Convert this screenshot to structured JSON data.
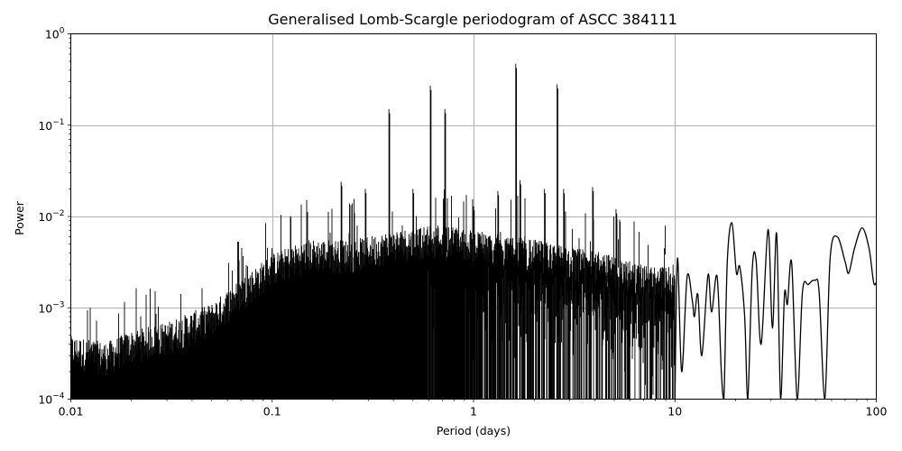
{
  "chart_data": {
    "type": "line",
    "title": "Generalised Lomb-Scargle periodogram of ASCC 384111",
    "xlabel": "Period (days)",
    "ylabel": "Power",
    "xscale": "log",
    "yscale": "log",
    "xlim": [
      0.01,
      100
    ],
    "ylim": [
      0.0001,
      1
    ],
    "grid": true,
    "line_color": "#000000",
    "grid_color": "#b0b0b0",
    "x_ticks": [
      {
        "value": 0.01,
        "label": "0.01"
      },
      {
        "value": 0.1,
        "label": "0.1"
      },
      {
        "value": 1,
        "label": "1"
      },
      {
        "value": 10,
        "label": "10"
      },
      {
        "value": 100,
        "label": "100"
      }
    ],
    "y_ticks": [
      {
        "value": 0.0001,
        "base": "10",
        "exp": "−4"
      },
      {
        "value": 0.001,
        "base": "10",
        "exp": "−3"
      },
      {
        "value": 0.01,
        "base": "10",
        "exp": "−2"
      },
      {
        "value": 0.1,
        "base": "10",
        "exp": "−1"
      },
      {
        "value": 1,
        "base": "10",
        "exp": "0"
      }
    ],
    "major_peaks": [
      {
        "period": 0.38,
        "power": 0.15
      },
      {
        "period": 0.61,
        "power": 0.27
      },
      {
        "period": 0.72,
        "power": 0.15
      },
      {
        "period": 1.62,
        "power": 0.47
      },
      {
        "period": 2.6,
        "power": 0.28
      },
      {
        "period": 0.22,
        "power": 0.024
      },
      {
        "period": 0.29,
        "power": 0.02
      },
      {
        "period": 0.38,
        "power": 0.03
      },
      {
        "period": 0.5,
        "power": 0.02
      },
      {
        "period": 1.0,
        "power": 0.013
      },
      {
        "period": 1.32,
        "power": 0.019
      },
      {
        "period": 1.7,
        "power": 0.025
      },
      {
        "period": 2.25,
        "power": 0.02
      },
      {
        "period": 2.8,
        "power": 0.02
      },
      {
        "period": 3.9,
        "power": 0.021
      },
      {
        "period": 5.1,
        "power": 0.012
      }
    ],
    "noise_envelope": [
      {
        "period": 0.01,
        "power": 0.00035
      },
      {
        "period": 0.015,
        "power": 0.0003
      },
      {
        "period": 0.02,
        "power": 0.0004
      },
      {
        "period": 0.03,
        "power": 0.0005
      },
      {
        "period": 0.05,
        "power": 0.0008
      },
      {
        "period": 0.07,
        "power": 0.0015
      },
      {
        "period": 0.1,
        "power": 0.0028
      },
      {
        "period": 0.15,
        "power": 0.004
      },
      {
        "period": 0.25,
        "power": 0.004
      },
      {
        "period": 0.4,
        "power": 0.005
      },
      {
        "period": 0.7,
        "power": 0.006
      },
      {
        "period": 1.0,
        "power": 0.005
      },
      {
        "period": 2.0,
        "power": 0.004
      },
      {
        "period": 4.0,
        "power": 0.003
      },
      {
        "period": 8.0,
        "power": 0.002
      }
    ],
    "long_period_curve": [
      {
        "period": 10.0,
        "power": 0.0001
      },
      {
        "period": 10.3,
        "power": 0.0035
      },
      {
        "period": 10.8,
        "power": 0.0002
      },
      {
        "period": 11.5,
        "power": 0.0022
      },
      {
        "period": 12.2,
        "power": 0.0012
      },
      {
        "period": 12.5,
        "power": 0.0008
      },
      {
        "period": 13.0,
        "power": 0.0014
      },
      {
        "period": 13.6,
        "power": 0.0003
      },
      {
        "period": 14.6,
        "power": 0.0023
      },
      {
        "period": 15.2,
        "power": 0.0009
      },
      {
        "period": 16.2,
        "power": 0.0022
      },
      {
        "period": 17.0,
        "power": 0.0002
      },
      {
        "period": 17.5,
        "power": 0.0001
      },
      {
        "period": 18.2,
        "power": 0.0032
      },
      {
        "period": 19.2,
        "power": 0.0085
      },
      {
        "period": 20.2,
        "power": 0.0024
      },
      {
        "period": 21.0,
        "power": 0.0028
      },
      {
        "period": 22.2,
        "power": 0.0008
      },
      {
        "period": 23.0,
        "power": 0.0001
      },
      {
        "period": 24.2,
        "power": 0.0026
      },
      {
        "period": 25.3,
        "power": 0.0033
      },
      {
        "period": 26.8,
        "power": 0.0004
      },
      {
        "period": 29.0,
        "power": 0.0072
      },
      {
        "period": 30.5,
        "power": 0.0006
      },
      {
        "period": 32.0,
        "power": 0.0065
      },
      {
        "period": 33.5,
        "power": 0.0001
      },
      {
        "period": 35.0,
        "power": 0.0014
      },
      {
        "period": 36.2,
        "power": 0.0011
      },
      {
        "period": 38.0,
        "power": 0.0031
      },
      {
        "period": 40.5,
        "power": 0.0001
      },
      {
        "period": 43.0,
        "power": 0.0015
      },
      {
        "period": 46.0,
        "power": 0.0018
      },
      {
        "period": 49.5,
        "power": 0.002
      },
      {
        "period": 52.0,
        "power": 0.0015
      },
      {
        "period": 55.5,
        "power": 0.0001
      },
      {
        "period": 59.0,
        "power": 0.0035
      },
      {
        "period": 64.0,
        "power": 0.006
      },
      {
        "period": 70.0,
        "power": 0.0032
      },
      {
        "period": 73.0,
        "power": 0.0024
      },
      {
        "period": 78.0,
        "power": 0.0045
      },
      {
        "period": 85.0,
        "power": 0.0075
      },
      {
        "period": 92.0,
        "power": 0.0045
      },
      {
        "period": 97.0,
        "power": 0.0019
      },
      {
        "period": 100.0,
        "power": 0.0019
      }
    ]
  }
}
